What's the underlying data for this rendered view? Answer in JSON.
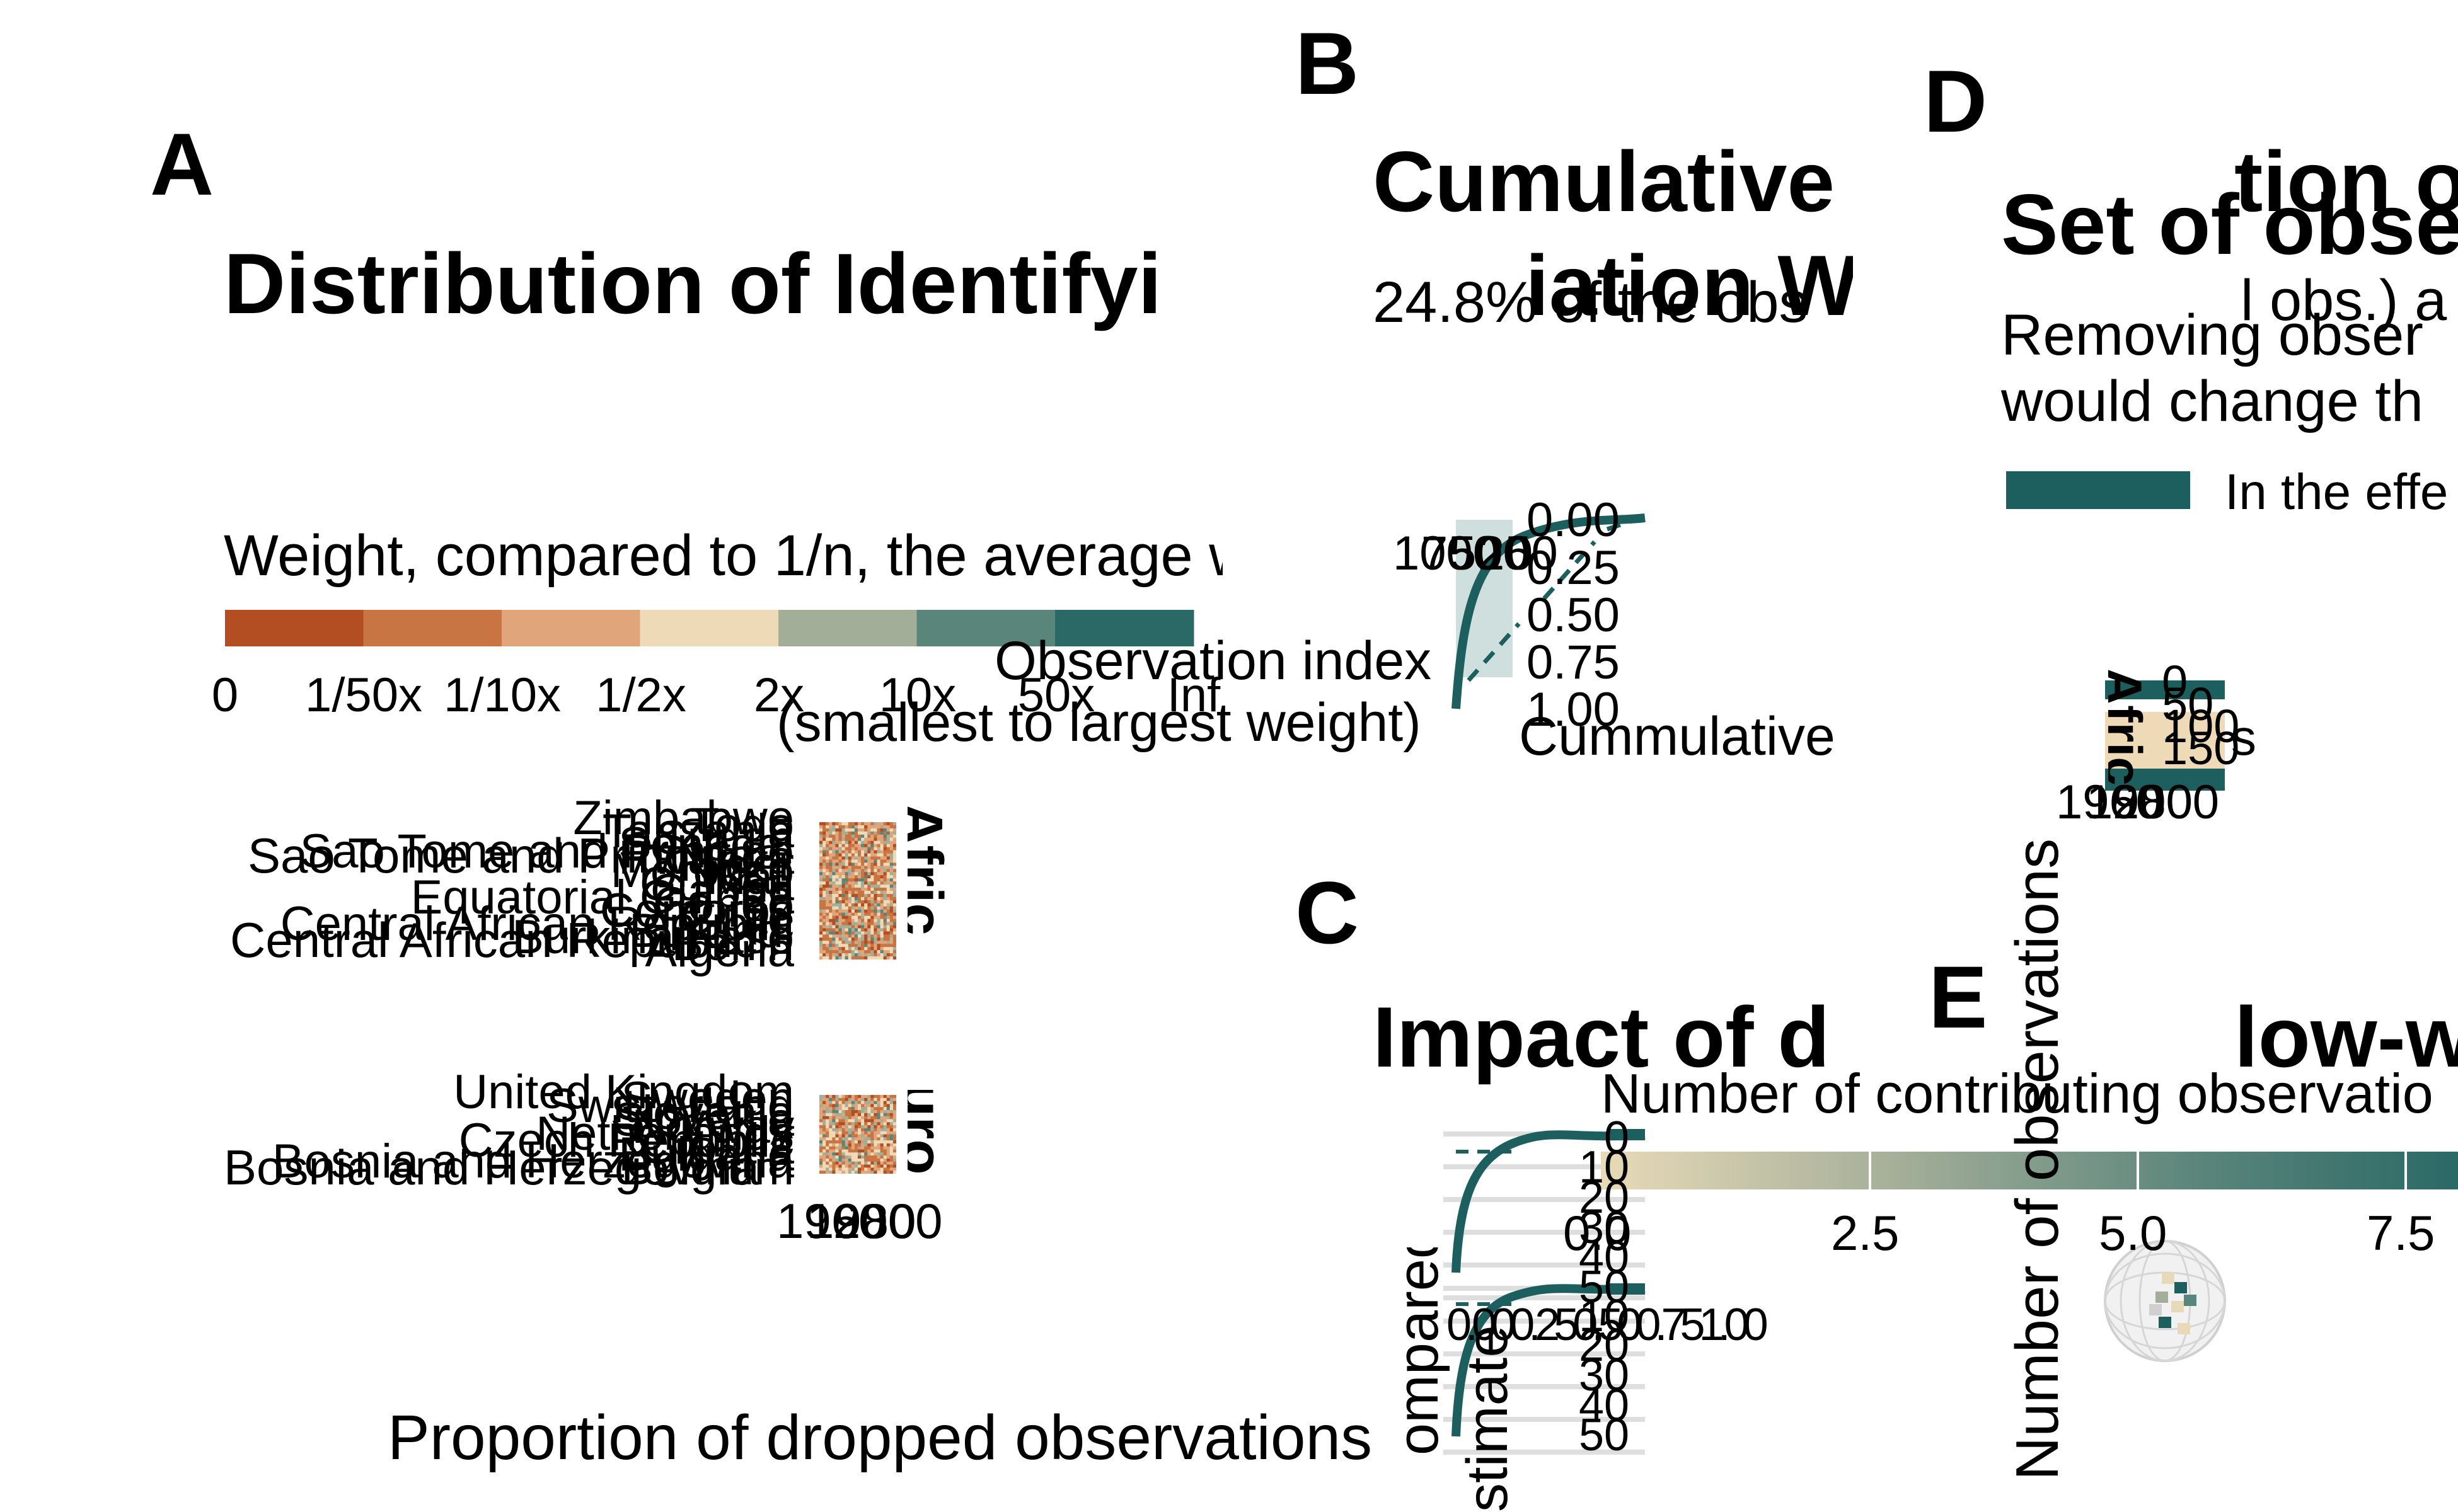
{
  "colors": {
    "teal_dark": "#1d5f5e",
    "teal_light": "#cfdfdd",
    "grid": "#dedede",
    "legend_scale": [
      "#b34e22",
      "#c97443",
      "#e1a57b",
      "#eedab7",
      "#a3ae98",
      "#5a857b",
      "#2b6966"
    ],
    "gradient_start": "#e8dab8",
    "gradient_end": "#2b6966"
  },
  "panel_a": {
    "letter": "A",
    "title": "Distribution of Identifyi",
    "legend_title": "Weight, compared to 1/n, the average w",
    "legend_labels": [
      "0",
      "1/50x",
      "1/10x",
      "1/2x",
      "2x",
      "10x",
      "50x",
      "Inf"
    ],
    "region1_label": "Afric",
    "region2_label": "Euro",
    "africa_countries": [
      "Zimbabwe",
      "Togo",
      "Tanzania",
      "Sudan",
      "Senegal",
      "Sao Tome and Principe",
      "Rwanda",
      "Niger",
      "Morocco",
      "Mali",
      "Guinea",
      "Gabon",
      "Equatorial Guinea",
      "Congo",
      "Comoros",
      "Chad",
      "Central African Republic",
      "Burundi",
      "Burkina Faso",
      "Benin",
      "Algeria"
    ],
    "europe_countries": [
      "United Kingdom",
      "Sweden",
      "Switzerland",
      "Slovenia",
      "Slovakia",
      "Norway",
      "Netherlands",
      "Czech Republic",
      "Croatia",
      "Bulgaria",
      "Bosnia and Herzegovina",
      "Belgium"
    ],
    "label_sao_tome": "Sao Tome and Principe",
    "label_car": "Central African Republic",
    "label_bosnia": "Bosnia and Herzegovina",
    "x_ticks": [
      "1960",
      "1980",
      "2000"
    ],
    "x_axis_title": "Proportion of dropped observations"
  },
  "panel_b": {
    "letter": "B",
    "title_line1": "Cumulative",
    "title_line2": "iation W",
    "subtitle": "24.8% of the obs",
    "x_label_line1": "Observation index",
    "x_label_line2": "(smallest to largest weight)",
    "y_ticks": [
      "0.00",
      "0.25",
      "0.50",
      "0.75",
      "1.00"
    ],
    "x_ticks_overlap": [
      "1000",
      "750",
      "500",
      "250",
      "0"
    ],
    "y_label": "Cummulative"
  },
  "panel_c": {
    "letter": "C",
    "title": "Impact of d",
    "title_right": "low-w",
    "y_ticks_top": [
      "0",
      "10",
      "20",
      "30",
      "40",
      "50"
    ],
    "y_ticks_bottom": [
      "10",
      "20",
      "30",
      "40",
      "50"
    ],
    "x_ticks": [
      "0.00",
      "0.25",
      "0.50",
      "0.75",
      "1.00"
    ],
    "x_tick_fragment": "0.000.250.500.751.00",
    "y_label_a": "ompared",
    "y_label_b": "stimate"
  },
  "panel_d": {
    "letter": "D",
    "title": "Set of obse",
    "title_overlap": "tion o",
    "subtitle_line1": "Removing obser",
    "subtitle_line2": "would change th",
    "subtitle_overlap": "l obs.) a",
    "legend_label": "In the effe",
    "africa_label": "Afric",
    "y_ticks": [
      "0",
      "50",
      "100",
      "150"
    ],
    "x_ticks": [
      "1960",
      "1980",
      "2000"
    ],
    "side_text": "s"
  },
  "panel_e": {
    "letter": "E",
    "legend_title": "Number of contributing observatio",
    "legend_ticks": [
      "0.0",
      "2.5",
      "5.0",
      "7.5"
    ],
    "y_axis_title": "Number of observations"
  }
}
